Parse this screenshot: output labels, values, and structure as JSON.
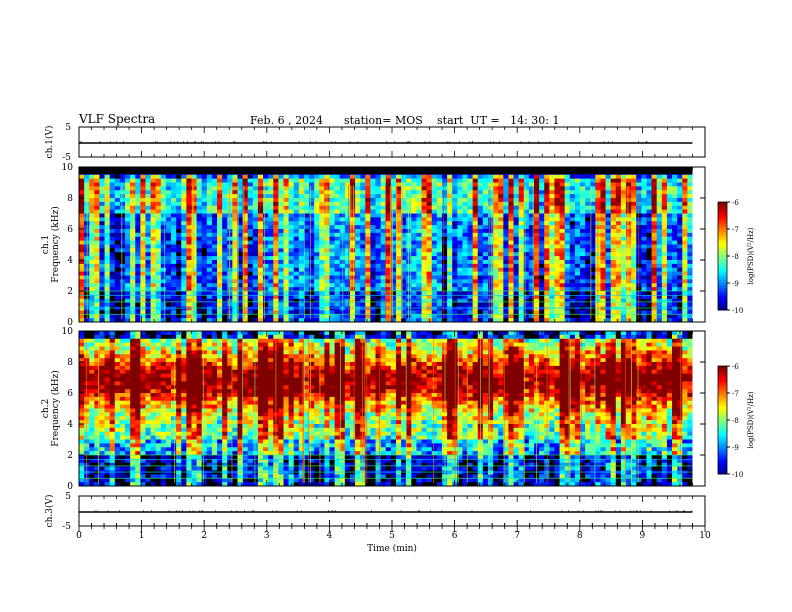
{
  "header": {
    "title": "VLF Spectra",
    "date": "Feb. 6 , 2024",
    "station": "station= MOS",
    "start": "start  UT =   14: 30: 1"
  },
  "chart_data": [
    {
      "type": "line",
      "panel": "ch1-waveform",
      "ylabel": "ch.1(V)",
      "yticks": [
        "5",
        "-5"
      ],
      "ylim": [
        -5,
        5
      ],
      "xlim": [
        0,
        10
      ],
      "series": [
        {
          "x": [
            0,
            9.8
          ],
          "y": [
            0,
            0
          ]
        }
      ]
    },
    {
      "type": "heatmap",
      "panel": "ch1-spectrogram",
      "ylabel": "ch.1\nFrequency (kHz)",
      "yticks": [
        "0",
        "2",
        "4",
        "6",
        "8",
        "10"
      ],
      "ylim": [
        0,
        10
      ],
      "xlim": [
        0,
        9.8
      ],
      "colorbar": {
        "label": "log(PSD)(V²/Hz)",
        "ticks": [
          "-6",
          "-7",
          "-8",
          "-9",
          "-10"
        ],
        "range": [
          -10,
          -6
        ]
      }
    },
    {
      "type": "heatmap",
      "panel": "ch2-spectrogram",
      "ylabel": "ch.2\nFrequency (kHz)",
      "yticks": [
        "0",
        "2",
        "4",
        "6",
        "8",
        "10"
      ],
      "ylim": [
        0,
        10
      ],
      "xlim": [
        0,
        9.8
      ],
      "colorbar": {
        "label": "log(PSD)(V²/Hz)",
        "ticks": [
          "-6",
          "-7",
          "-8",
          "-9",
          "-10"
        ],
        "range": [
          -10,
          -6
        ]
      }
    },
    {
      "type": "line",
      "panel": "ch3-waveform",
      "ylabel": "ch.3(V)",
      "yticks": [
        "5",
        "-5"
      ],
      "ylim": [
        -5,
        5
      ],
      "xlim": [
        0,
        10
      ],
      "series": [
        {
          "x": [
            0,
            9.8
          ],
          "y": [
            0,
            0
          ]
        }
      ]
    }
  ],
  "xaxis": {
    "label": "Time  (min)",
    "ticks": [
      "0",
      "1",
      "2",
      "3",
      "4",
      "5",
      "6",
      "7",
      "8",
      "9",
      "10"
    ],
    "range": [
      0,
      10
    ]
  }
}
